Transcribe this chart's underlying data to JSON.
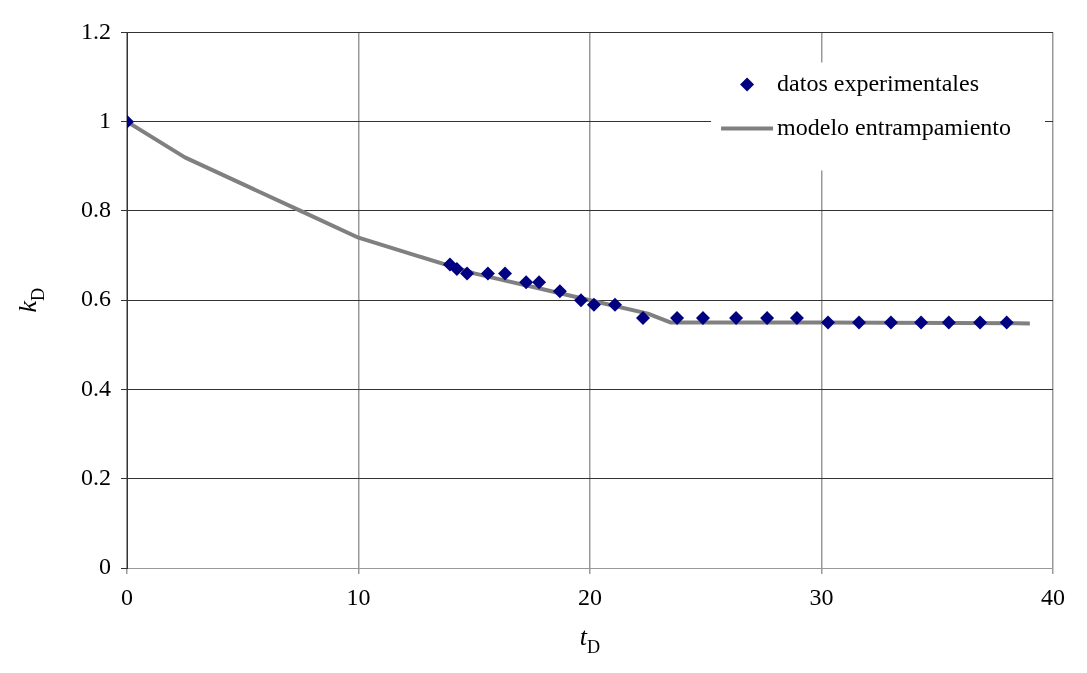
{
  "chart_data": {
    "type": "scatter",
    "xlabel": "t$_{D}$",
    "ylabel": "k$_{D}$",
    "xlim": [
      0,
      40
    ],
    "ylim": [
      0,
      1.2
    ],
    "xticks": [
      0,
      10,
      20,
      30,
      40
    ],
    "yticks": [
      0,
      0.2,
      0.4,
      0.6,
      0.8,
      1,
      1.2
    ],
    "grid": true,
    "legend": "top right",
    "series": [
      {
        "name": "datos experimentales",
        "marker": "diamond",
        "color": "#000080",
        "x": [
          0,
          13.95,
          14.25,
          14.69,
          15.59,
          16.33,
          17.24,
          17.8,
          18.7,
          19.61,
          20.17,
          21.08,
          22.29,
          23.76,
          24.88,
          26.31,
          27.65,
          28.94,
          30.28,
          31.62,
          33.0,
          34.3,
          35.5,
          36.85,
          38.0
        ],
        "values": [
          1,
          0.68,
          0.67,
          0.66,
          0.66,
          0.66,
          0.64,
          0.64,
          0.62,
          0.6,
          0.59,
          0.59,
          0.56,
          0.56,
          0.56,
          0.56,
          0.56,
          0.56,
          0.55,
          0.55,
          0.55,
          0.55,
          0.55,
          0.55,
          0.55
        ]
      },
      {
        "name": "modelo entrampamiento",
        "type": "line",
        "marker": "none",
        "color": "#808080",
        "x": [
          0,
          2.5,
          5,
          7.5,
          10,
          12.5,
          15,
          17.5,
          20,
          22.5,
          23.5,
          30,
          39
        ],
        "values": [
          1,
          0.92,
          0.86,
          0.8,
          0.74,
          0.7,
          0.66,
          0.63,
          0.6,
          0.57,
          0.55,
          0.55,
          0.548
        ]
      }
    ]
  }
}
